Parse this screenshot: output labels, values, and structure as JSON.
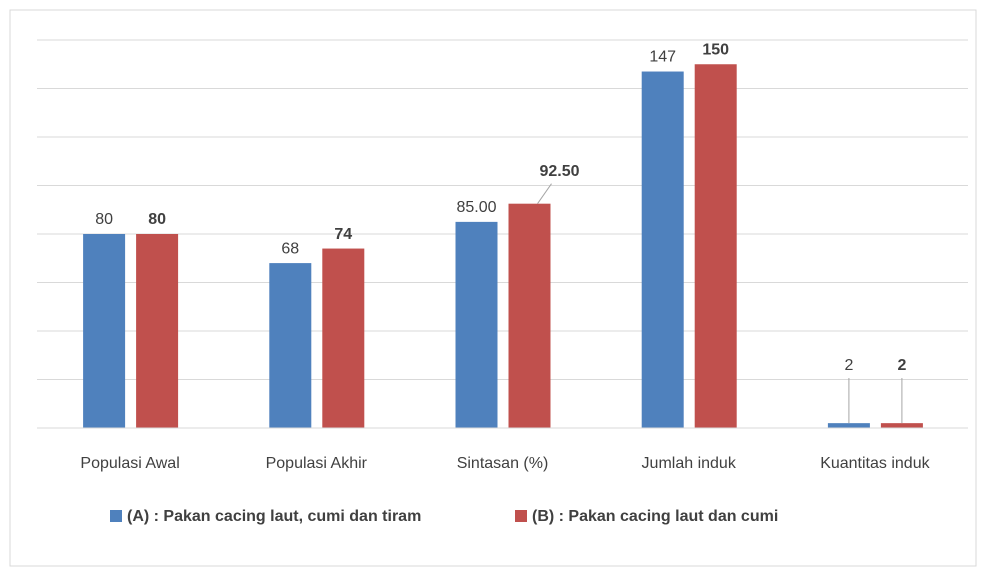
{
  "chart_data": {
    "type": "bar",
    "categories": [
      "Populasi Awal",
      "Populasi Akhir",
      "Sintasan (%)",
      "Jumlah induk",
      "Kuantitas induk"
    ],
    "series": [
      {
        "name": "(A) : Pakan cacing laut, cumi dan tiram",
        "color": "#4f81bd",
        "values": [
          80,
          68,
          85,
          147,
          2
        ],
        "value_labels": [
          "80",
          "68",
          "85.00",
          "147",
          "2"
        ]
      },
      {
        "name": "(B) : Pakan cacing laut dan cumi",
        "color": "#c0504d",
        "values": [
          80,
          74,
          92.5,
          150,
          2
        ],
        "value_labels": [
          "80",
          "74",
          "92.50",
          "150",
          "2"
        ]
      }
    ],
    "ylim": [
      0,
      160
    ],
    "yticks": [
      0,
      20,
      40,
      60,
      80,
      100,
      120,
      140,
      160
    ],
    "grid": true,
    "legend": "bottom"
  }
}
